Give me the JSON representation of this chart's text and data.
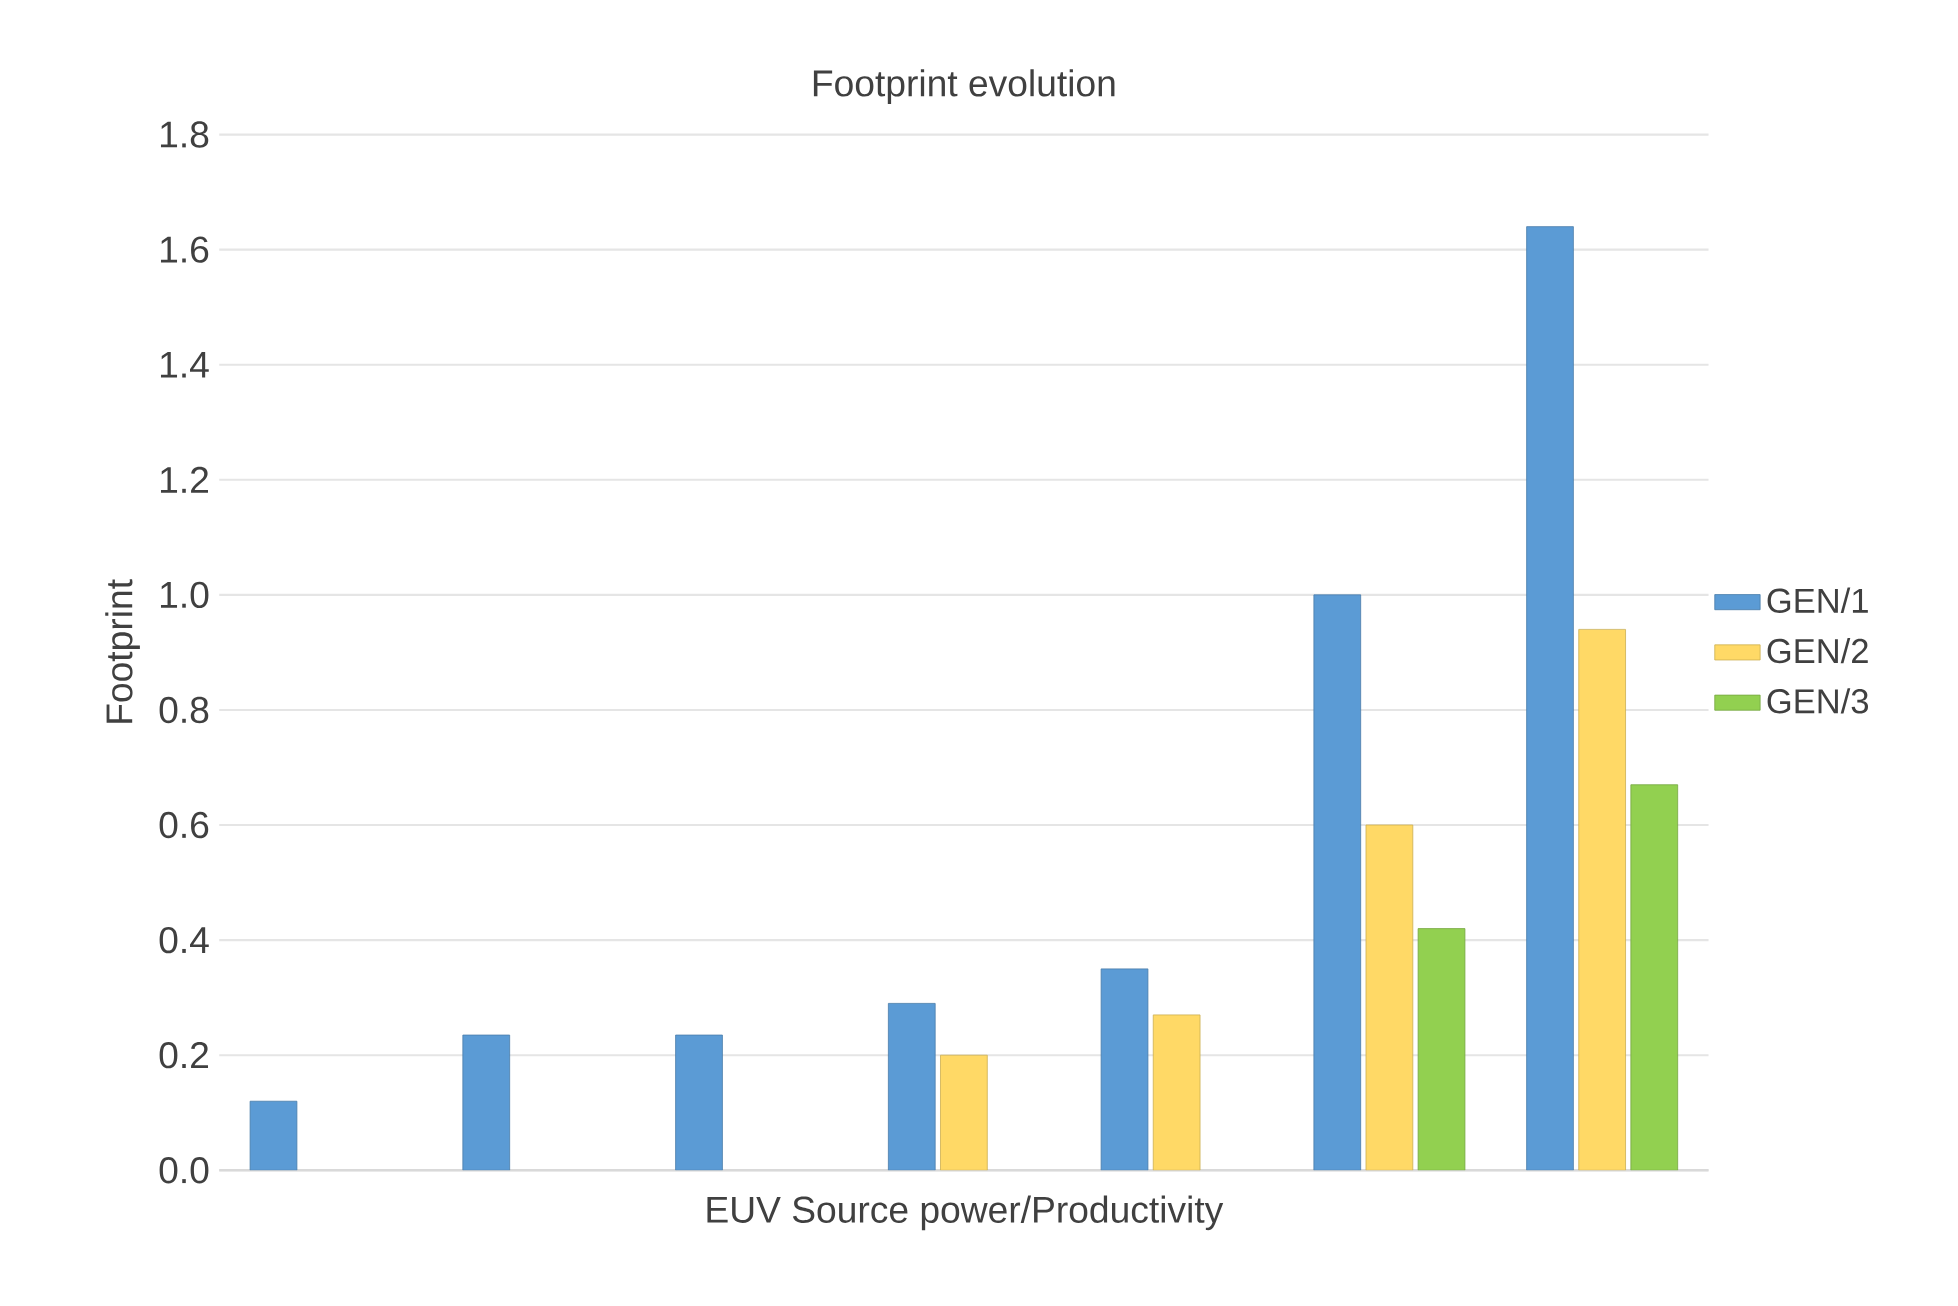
{
  "chart_data": {
    "type": "bar",
    "title": "Footprint evolution",
    "xlabel": "EUV Source power/Productivity",
    "ylabel": "Footprint",
    "categories": [
      null,
      null,
      null,
      null,
      null,
      null,
      null
    ],
    "series": [
      {
        "name": "GEN/1",
        "color": "#5b9bd5",
        "values": [
          0.12,
          0.235,
          0.235,
          0.29,
          0.35,
          1.0,
          1.64
        ]
      },
      {
        "name": "GEN/2",
        "color": "#ffd966",
        "values": [
          null,
          null,
          null,
          0.2,
          0.27,
          0.6,
          0.94
        ]
      },
      {
        "name": "GEN/3",
        "color": "#92d050",
        "values": [
          null,
          null,
          null,
          null,
          null,
          0.42,
          0.67
        ]
      }
    ],
    "ylim": [
      0,
      1.8
    ],
    "yticks": [
      {
        "value": 0,
        "label": "0.0"
      },
      {
        "value": 0.2,
        "label": "0.2"
      },
      {
        "value": 0.4,
        "label": "0.4"
      },
      {
        "value": 0.6,
        "label": "0.6"
      },
      {
        "value": 0.8,
        "label": "0.8"
      },
      {
        "value": 1.0,
        "label": "1.0"
      },
      {
        "value": 1.2,
        "label": "1.2"
      },
      {
        "value": 1.4,
        "label": "1.4"
      },
      {
        "value": 1.6,
        "label": "1.6"
      },
      {
        "value": 1.8,
        "label": "1.8"
      }
    ],
    "grid": "y",
    "legend": "right"
  }
}
